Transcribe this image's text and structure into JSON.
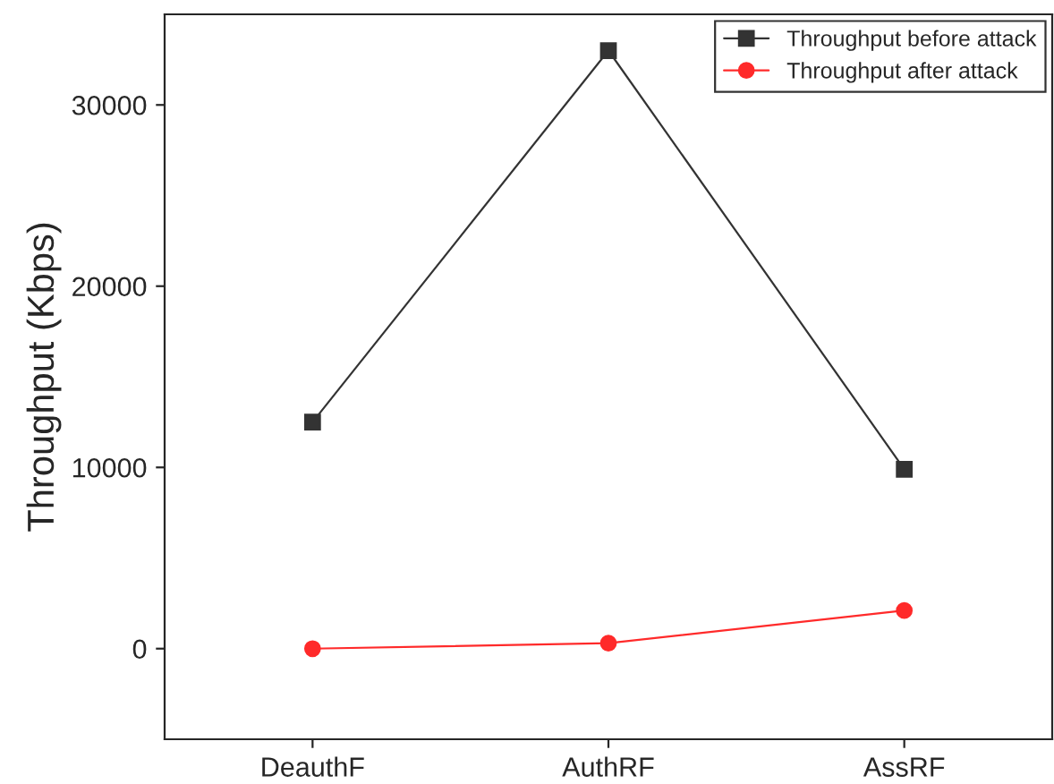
{
  "chart_data": {
    "type": "line",
    "ylabel": "Throughput (Kbps)",
    "categories": [
      "DeauthF",
      "AuthRF",
      "AssRF"
    ],
    "series": [
      {
        "name": "Throughput before attack",
        "color": "#333333",
        "marker": "square",
        "values": [
          12500,
          33000,
          9900
        ]
      },
      {
        "name": "Throughput after attack",
        "color": "#ff2a2a",
        "marker": "circle",
        "values": [
          0,
          300,
          2100
        ]
      }
    ],
    "ylim": [
      -5000,
      35000
    ],
    "yticks": [
      0,
      10000,
      20000,
      30000
    ],
    "grid": false,
    "legend": "top right",
    "line_style": "solid"
  }
}
